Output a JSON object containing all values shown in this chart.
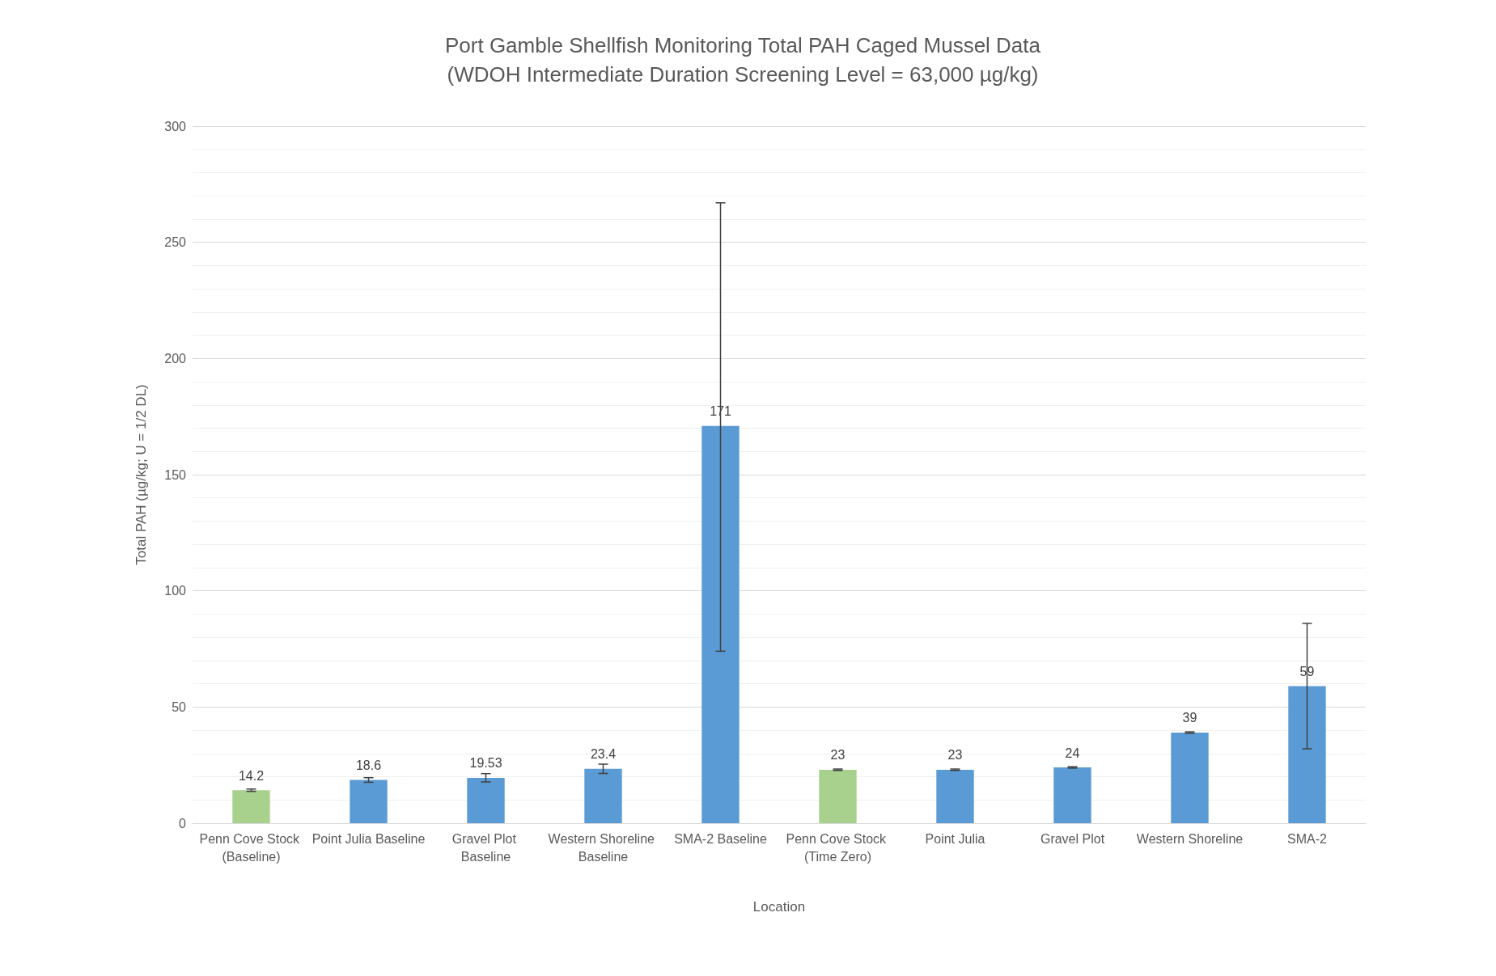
{
  "chart_data": {
    "type": "bar",
    "title": "Port Gamble Shellfish Monitoring Total PAH Caged Mussel Data",
    "subtitle": "(WDOH Intermediate Duration Screening Level = 63,000 µg/kg)",
    "xlabel": "Location",
    "ylabel": "Total PAH (µg/kg; U = 1/2 DL)",
    "categories": [
      "Penn Cove Stock (Baseline)",
      "Point Julia Baseline",
      "Gravel Plot Baseline",
      "Western Shoreline Baseline",
      "SMA-2 Baseline",
      "Penn Cove Stock (Time Zero)",
      "Point Julia",
      "Gravel Plot",
      "Western Shoreline",
      "SMA-2"
    ],
    "values": [
      14.2,
      18.6,
      19.53,
      23.4,
      171,
      23,
      23,
      24,
      39,
      59
    ],
    "colors": [
      "#a9d18e",
      "#5b9bd5",
      "#5b9bd5",
      "#5b9bd5",
      "#5b9bd5",
      "#a9d18e",
      "#5b9bd5",
      "#5b9bd5",
      "#5b9bd5",
      "#5b9bd5"
    ],
    "errors": [
      0.5,
      1,
      1.8,
      2,
      [
        74,
        267
      ],
      0.3,
      0.3,
      0.3,
      0.3,
      [
        32,
        86
      ]
    ],
    "data_labels": true,
    "ylim": [
      0,
      300
    ],
    "yticks": [
      0,
      50,
      100,
      150,
      200,
      250,
      300
    ],
    "grid": "y"
  }
}
